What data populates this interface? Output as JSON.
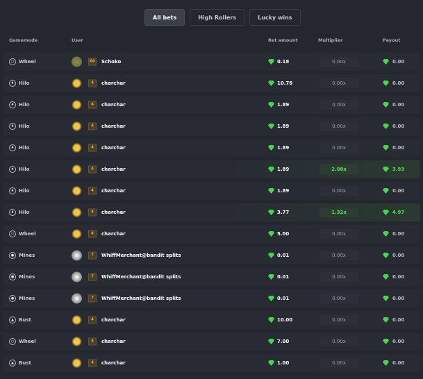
{
  "tabs": [
    "All bets",
    "High Rollers",
    "Lucky wins"
  ],
  "columns": {
    "gamemode": "Gamemode",
    "user": "User",
    "bet": "Bet amount",
    "multiplier": "Multiplier",
    "payout": "Payout"
  },
  "colors": {
    "gem": "#3fd94a",
    "win": "#4be354"
  },
  "rows": [
    {
      "mode": "Wheel",
      "icon": "wheel-icon",
      "level": "60",
      "user": "Schoko",
      "bet": "0.18",
      "mult": "0.00x",
      "payout": "0.00",
      "win": false
    },
    {
      "mode": "Hilo",
      "icon": "hilo-icon",
      "level": "4",
      "user": "charchar",
      "bet": "10.76",
      "mult": "0.00x",
      "payout": "0.00",
      "win": false
    },
    {
      "mode": "Hilo",
      "icon": "hilo-icon",
      "level": "4",
      "user": "charchar",
      "bet": "1.89",
      "mult": "0.00x",
      "payout": "0.00",
      "win": false
    },
    {
      "mode": "Hilo",
      "icon": "hilo-icon",
      "level": "4",
      "user": "charchar",
      "bet": "1.89",
      "mult": "0.00x",
      "payout": "0.00",
      "win": false
    },
    {
      "mode": "Hilo",
      "icon": "hilo-icon",
      "level": "4",
      "user": "charchar",
      "bet": "1.89",
      "mult": "0.00x",
      "payout": "0.00",
      "win": false
    },
    {
      "mode": "Hilo",
      "icon": "hilo-icon",
      "level": "4",
      "user": "charchar",
      "bet": "1.89",
      "mult": "2.08x",
      "payout": "3.93",
      "win": true
    },
    {
      "mode": "Hilo",
      "icon": "hilo-icon",
      "level": "4",
      "user": "charchar",
      "bet": "1.89",
      "mult": "0.00x",
      "payout": "0.00",
      "win": false
    },
    {
      "mode": "Hilo",
      "icon": "hilo-icon",
      "level": "4",
      "user": "charchar",
      "bet": "3.77",
      "mult": "1.32x",
      "payout": "4.97",
      "win": true
    },
    {
      "mode": "Wheel",
      "icon": "wheel-icon",
      "level": "4",
      "user": "charchar",
      "bet": "5.00",
      "mult": "0.00x",
      "payout": "0.00",
      "win": false
    },
    {
      "mode": "Mines",
      "icon": "mines-icon",
      "level": "7",
      "user": "WhiffMerchant@bandit splits",
      "bet": "0.01",
      "mult": "0.00x",
      "payout": "0.00",
      "win": false
    },
    {
      "mode": "Mines",
      "icon": "mines-icon",
      "level": "7",
      "user": "WhiffMerchant@bandit splits",
      "bet": "0.01",
      "mult": "0.00x",
      "payout": "0.00",
      "win": false
    },
    {
      "mode": "Mines",
      "icon": "mines-icon",
      "level": "7",
      "user": "WhiffMerchant@bandit splits",
      "bet": "0.01",
      "mult": "0.00x",
      "payout": "0.00",
      "win": false
    },
    {
      "mode": "Bust",
      "icon": "bust-icon",
      "level": "4",
      "user": "charchar",
      "bet": "10.00",
      "mult": "0.00x",
      "payout": "0.00",
      "win": false
    },
    {
      "mode": "Wheel",
      "icon": "wheel-icon",
      "level": "4",
      "user": "charchar",
      "bet": "7.00",
      "mult": "0.00x",
      "payout": "0.00",
      "win": false
    },
    {
      "mode": "Bust",
      "icon": "bust-icon",
      "level": "4",
      "user": "charchar",
      "bet": "1.00",
      "mult": "0.00x",
      "payout": "0.00",
      "win": false
    }
  ]
}
